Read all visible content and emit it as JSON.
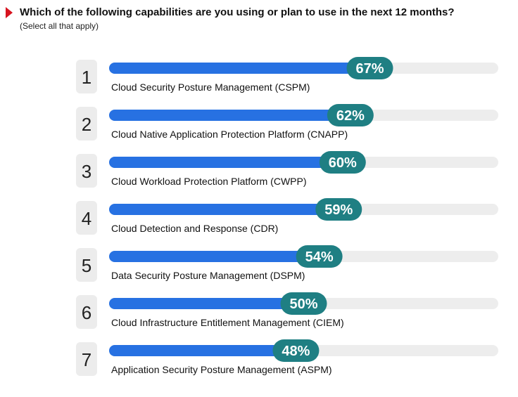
{
  "header": {
    "question": "Which of the following capabilities are you using or plan to use in the next 12 months?",
    "instruction": "(Select all that apply)"
  },
  "colors": {
    "marker": "#d7131f",
    "bar_fill": "#2771e2",
    "track": "#ededed",
    "badge": "#1f7f83",
    "rank_box": "#ececec"
  },
  "chart_data": {
    "type": "bar",
    "orientation": "horizontal",
    "ranks": [
      "1",
      "2",
      "3",
      "4",
      "5",
      "6",
      "7"
    ],
    "categories": [
      "Cloud Security Posture Management (CSPM)",
      "Cloud Native Application Protection Platform (CNAPP)",
      "Cloud Workload Protection Platform (CWPP)",
      "Cloud Detection and Response (CDR)",
      "Data Security Posture Management (DSPM)",
      "Cloud Infrastructure Entitlement Management (CIEM)",
      "Application Security Posture Management (ASPM)"
    ],
    "values": [
      67,
      62,
      60,
      59,
      54,
      50,
      48
    ],
    "value_labels": [
      "67%",
      "62%",
      "60%",
      "59%",
      "54%",
      "50%",
      "48%"
    ],
    "xlim": [
      0,
      100
    ],
    "grid": false
  }
}
